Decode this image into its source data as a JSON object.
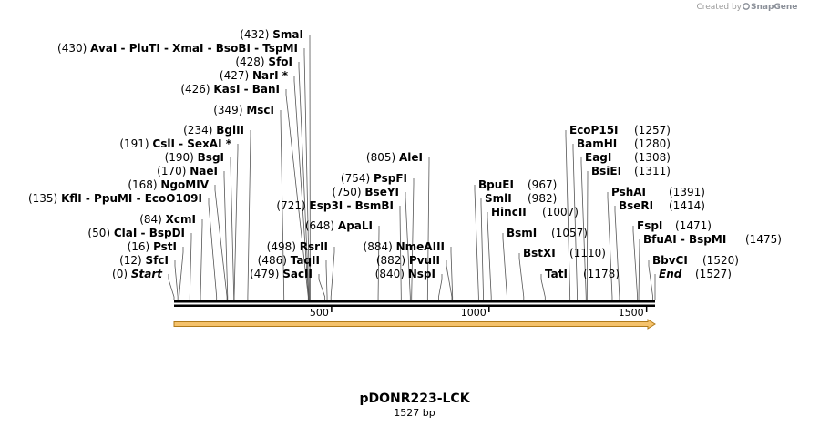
{
  "credit": {
    "prefix": "Created by",
    "brand": "SnapGene"
  },
  "sequence": {
    "name": "pDONR223-LCK",
    "length_label": "1527 bp",
    "length": 1527
  },
  "axis": {
    "ticks": [
      500,
      1000,
      1500
    ],
    "tick_labels": [
      "500",
      "1000",
      "1500"
    ]
  },
  "feature": {
    "name": "CDS arrow",
    "start": 1,
    "end": 1527,
    "color": "#f5c26b"
  },
  "sites": [
    {
      "pos": 0,
      "pos_label": "(0)",
      "names": [
        "Start"
      ],
      "italic": true,
      "side": "left"
    },
    {
      "pos": 12,
      "pos_label": "(12)",
      "names": [
        "SfcI"
      ],
      "side": "left"
    },
    {
      "pos": 16,
      "pos_label": "(16)",
      "names": [
        "PstI"
      ],
      "side": "left"
    },
    {
      "pos": 50,
      "pos_label": "(50)",
      "names": [
        "ClaI",
        "BspDI"
      ],
      "side": "left"
    },
    {
      "pos": 84,
      "pos_label": "(84)",
      "names": [
        "XcmI"
      ],
      "side": "left"
    },
    {
      "pos": 135,
      "pos_label": "(135)",
      "names": [
        "KflI",
        "PpuMI",
        "EcoO109I"
      ],
      "side": "left"
    },
    {
      "pos": 168,
      "pos_label": "(168)",
      "names": [
        "NgoMIV"
      ],
      "side": "left"
    },
    {
      "pos": 170,
      "pos_label": "(170)",
      "names": [
        "NaeI"
      ],
      "side": "left"
    },
    {
      "pos": 190,
      "pos_label": "(190)",
      "names": [
        "BsgI"
      ],
      "side": "left"
    },
    {
      "pos": 191,
      "pos_label": "(191)",
      "names": [
        "CslI",
        "SexAI *"
      ],
      "side": "left"
    },
    {
      "pos": 234,
      "pos_label": "(234)",
      "names": [
        "BglII"
      ],
      "side": "left"
    },
    {
      "pos": 349,
      "pos_label": "(349)",
      "names": [
        "MscI"
      ],
      "side": "left"
    },
    {
      "pos": 426,
      "pos_label": "(426)",
      "names": [
        "KasI",
        "BanI"
      ],
      "side": "left"
    },
    {
      "pos": 427,
      "pos_label": "(427)",
      "names": [
        "NarI *"
      ],
      "side": "left"
    },
    {
      "pos": 428,
      "pos_label": "(428)",
      "names": [
        "SfoI"
      ],
      "side": "left"
    },
    {
      "pos": 430,
      "pos_label": "(430)",
      "names": [
        "AvaI",
        "PluTI",
        "XmaI",
        "BsoBI",
        "TspMI"
      ],
      "side": "left"
    },
    {
      "pos": 432,
      "pos_label": "(432)",
      "names": [
        "SmaI"
      ],
      "side": "left"
    },
    {
      "pos": 479,
      "pos_label": "(479)",
      "names": [
        "SacII"
      ],
      "side": "left"
    },
    {
      "pos": 486,
      "pos_label": "(486)",
      "names": [
        "TaqII"
      ],
      "side": "left"
    },
    {
      "pos": 498,
      "pos_label": "(498)",
      "names": [
        "RsrII"
      ],
      "side": "left"
    },
    {
      "pos": 648,
      "pos_label": "(648)",
      "names": [
        "ApaLI"
      ],
      "side": "left"
    },
    {
      "pos": 721,
      "pos_label": "(721)",
      "names": [
        "Esp3I",
        "BsmBI"
      ],
      "side": "left"
    },
    {
      "pos": 750,
      "pos_label": "(750)",
      "names": [
        "BseYI"
      ],
      "side": "left"
    },
    {
      "pos": 754,
      "pos_label": "(754)",
      "names": [
        "PspFI"
      ],
      "side": "left"
    },
    {
      "pos": 805,
      "pos_label": "(805)",
      "names": [
        "AleI"
      ],
      "side": "left"
    },
    {
      "pos": 840,
      "pos_label": "(840)",
      "names": [
        "NspI"
      ],
      "side": "left"
    },
    {
      "pos": 882,
      "pos_label": "(882)",
      "names": [
        "PvuII"
      ],
      "side": "left"
    },
    {
      "pos": 884,
      "pos_label": "(884)",
      "names": [
        "NmeAIII"
      ],
      "side": "left"
    },
    {
      "pos": 967,
      "pos_label": "(967)",
      "names": [
        "BpuEI"
      ],
      "side": "right"
    },
    {
      "pos": 982,
      "pos_label": "(982)",
      "names": [
        "SmlI"
      ],
      "side": "right"
    },
    {
      "pos": 1007,
      "pos_label": "(1007)",
      "names": [
        "HincII"
      ],
      "side": "right"
    },
    {
      "pos": 1057,
      "pos_label": "(1057)",
      "names": [
        "BsmI"
      ],
      "side": "right"
    },
    {
      "pos": 1110,
      "pos_label": "(1110)",
      "names": [
        "BstXI"
      ],
      "side": "right"
    },
    {
      "pos": 1178,
      "pos_label": "(1178)",
      "names": [
        "TatI"
      ],
      "side": "right"
    },
    {
      "pos": 1257,
      "pos_label": "(1257)",
      "names": [
        "EcoP15I"
      ],
      "side": "right"
    },
    {
      "pos": 1280,
      "pos_label": "(1280)",
      "names": [
        "BamHI"
      ],
      "side": "right"
    },
    {
      "pos": 1308,
      "pos_label": "(1308)",
      "names": [
        "EagI"
      ],
      "side": "right"
    },
    {
      "pos": 1311,
      "pos_label": "(1311)",
      "names": [
        "BsiEI"
      ],
      "side": "right"
    },
    {
      "pos": 1391,
      "pos_label": "(1391)",
      "names": [
        "PshAI"
      ],
      "side": "right"
    },
    {
      "pos": 1414,
      "pos_label": "(1414)",
      "names": [
        "BseRI"
      ],
      "side": "right"
    },
    {
      "pos": 1471,
      "pos_label": "(1471)",
      "names": [
        "FspI"
      ],
      "side": "right"
    },
    {
      "pos": 1475,
      "pos_label": "(1475)",
      "names": [
        "BfuAI",
        "BspMI"
      ],
      "side": "right"
    },
    {
      "pos": 1520,
      "pos_label": "(1520)",
      "names": [
        "BbvCI"
      ],
      "side": "right"
    },
    {
      "pos": 1527,
      "pos_label": "(1527)",
      "names": [
        "End"
      ],
      "italic": true,
      "side": "right"
    }
  ]
}
